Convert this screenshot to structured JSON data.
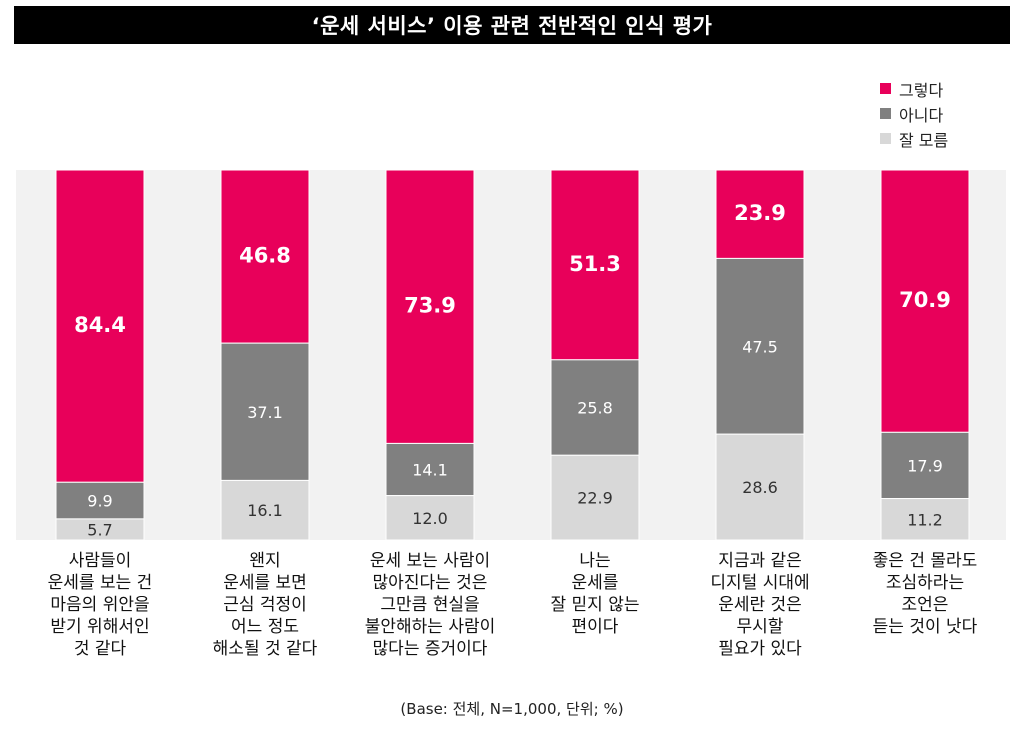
{
  "title": "‘운세 서비스’ 이용 관련 전반적인 인식 평가",
  "footnote": "(Base: 전체, N=1,000, 단위; %)",
  "colors": {
    "yes": "#e8005a",
    "no": "#808080",
    "unknown": "#d8d8d8"
  },
  "chart_data": {
    "type": "bar",
    "stacked": true,
    "orientation": "vertical",
    "ylim": [
      0,
      100
    ],
    "grid": false,
    "legend_position": "top-right",
    "categories": [
      "사람들이\n운세를 보는 건\n마음의 위안을\n받기 위해서인\n것 같다",
      "왠지\n운세를 보면\n근심 걱정이\n어느 정도\n해소될 것 같다",
      "운세 보는 사람이\n많아진다는 것은\n그만큼 현실을\n불안해하는 사람이\n많다는 증거이다",
      "나는\n운세를\n잘 믿지 않는\n편이다",
      "지금과 같은\n디지털 시대에\n운세란 것은\n무시할\n필요가 있다",
      "좋은 건 몰라도\n조심하라는\n조언은\n듣는 것이 낫다"
    ],
    "series": [
      {
        "name": "그렇다",
        "values": [
          84.4,
          46.8,
          73.9,
          51.3,
          23.9,
          70.9
        ]
      },
      {
        "name": "아니다",
        "values": [
          9.9,
          37.1,
          14.1,
          25.8,
          47.5,
          17.9
        ]
      },
      {
        "name": "잘 모름",
        "values": [
          5.7,
          16.1,
          12.0,
          22.9,
          28.6,
          11.2
        ]
      }
    ]
  }
}
